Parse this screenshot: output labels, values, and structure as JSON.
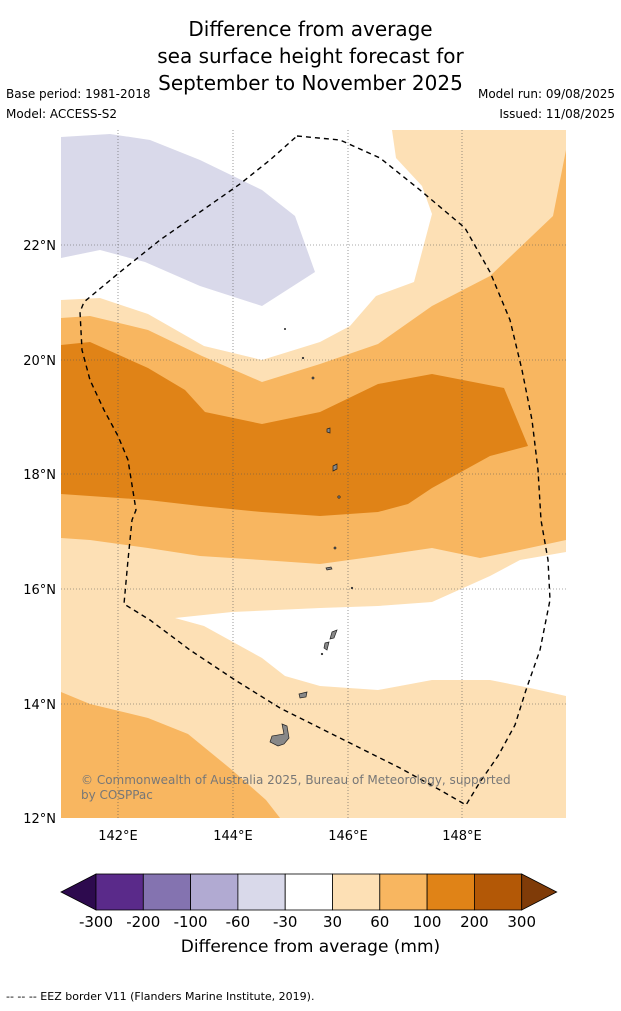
{
  "title": {
    "line1": "Difference from average",
    "line2": "sea surface height forecast for",
    "line3": "September to November 2025"
  },
  "meta": {
    "base_period": "Base period: 1981-2018",
    "model": "Model: ACCESS-S2",
    "model_run": "Model run: 09/08/2025",
    "issued": "Issued: 11/08/2025"
  },
  "map": {
    "lon_range": [
      141,
      149.8
    ],
    "lat_range": [
      12,
      24
    ],
    "lon_ticks": [
      "142°E",
      "144°E",
      "146°E",
      "148°E"
    ],
    "lat_ticks": [
      "12°N",
      "14°N",
      "16°N",
      "18°N",
      "20°N",
      "22°N"
    ],
    "gridlines": true,
    "attribution": "© Commonwealth of Australia 2025, Bureau of Meteorology, supported by COSPPac",
    "attribution_line1": "© Commonwealth of Australia 2025, Bureau of Meteorology, supported",
    "attribution_line2": "by COSPPac"
  },
  "colorbar": {
    "labels": [
      "-300",
      "-200",
      "-100",
      "-60",
      "-30",
      "30",
      "60",
      "100",
      "200",
      "300"
    ],
    "colors": [
      "#2d0a4e",
      "#5a2a8a",
      "#8473b0",
      "#b1aad2",
      "#d9d9ea",
      "#ffffff",
      "#fde0b5",
      "#f8b660",
      "#e08317",
      "#b35806",
      "#7f3b08"
    ],
    "title": "Difference from average (mm)"
  },
  "footnote": "--  --  -- EEZ border V11 (Flanders Marine Institute, 2019)."
}
